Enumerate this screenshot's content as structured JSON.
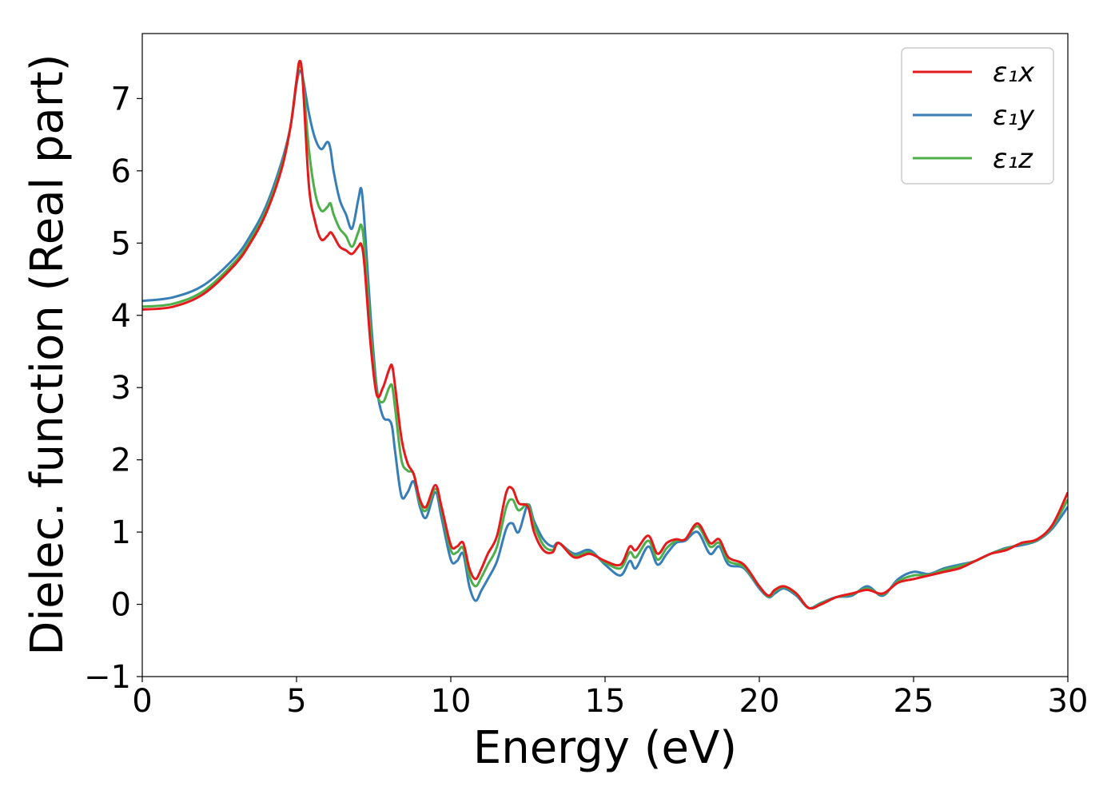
{
  "chart_data": {
    "type": "line",
    "title": "",
    "xlabel": "Energy (eV)",
    "ylabel": "Dielec. function (Real part)",
    "xlim": [
      0,
      30
    ],
    "ylim": [
      -1,
      7.9
    ],
    "xticks": [
      "0",
      "5",
      "10",
      "15",
      "20",
      "25",
      "30"
    ],
    "yticks": [
      "−1",
      "0",
      "1",
      "2",
      "3",
      "4",
      "5",
      "6",
      "7"
    ],
    "grid": false,
    "legend_position": "top-right",
    "series": [
      {
        "name": "ε₁x",
        "color": "#e41a1c",
        "x": [
          0,
          1,
          2,
          3,
          3.5,
          4,
          4.5,
          4.8,
          5.0,
          5.1,
          5.2,
          5.4,
          5.6,
          5.8,
          6.0,
          6.1,
          6.2,
          6.4,
          6.6,
          6.8,
          7.0,
          7.1,
          7.2,
          7.4,
          7.6,
          7.8,
          8.0,
          8.1,
          8.2,
          8.4,
          8.6,
          8.8,
          9.0,
          9.2,
          9.5,
          9.7,
          10.0,
          10.2,
          10.4,
          10.6,
          10.8,
          11.0,
          11.2,
          11.5,
          11.8,
          12.0,
          12.2,
          12.5,
          12.7,
          13.0,
          13.3,
          13.5,
          14.0,
          14.5,
          15.0,
          15.5,
          15.8,
          16.0,
          16.4,
          16.7,
          17.0,
          17.3,
          17.6,
          18.0,
          18.4,
          18.7,
          19.0,
          19.5,
          20.0,
          20.3,
          20.5,
          20.8,
          21.2,
          21.6,
          22.0,
          22.5,
          23.0,
          23.5,
          24.0,
          24.5,
          25.0,
          25.5,
          26.0,
          26.5,
          27.0,
          27.5,
          28.0,
          28.5,
          29.0,
          29.5,
          30.0
        ],
        "values": [
          4.08,
          4.12,
          4.3,
          4.7,
          5.0,
          5.4,
          6.0,
          6.6,
          7.25,
          7.52,
          7.25,
          5.8,
          5.3,
          5.05,
          5.1,
          5.15,
          5.1,
          4.95,
          4.9,
          4.85,
          4.95,
          4.98,
          4.7,
          3.6,
          2.9,
          3.0,
          3.25,
          3.3,
          3.0,
          2.3,
          1.95,
          1.8,
          1.45,
          1.35,
          1.65,
          1.35,
          0.82,
          0.8,
          0.85,
          0.5,
          0.35,
          0.5,
          0.7,
          0.95,
          1.55,
          1.6,
          1.4,
          1.35,
          1.0,
          0.75,
          0.72,
          0.85,
          0.65,
          0.7,
          0.6,
          0.55,
          0.8,
          0.75,
          0.95,
          0.7,
          0.85,
          0.9,
          0.9,
          1.12,
          0.85,
          0.9,
          0.65,
          0.55,
          0.25,
          0.12,
          0.2,
          0.25,
          0.15,
          -0.05,
          0.0,
          0.1,
          0.15,
          0.2,
          0.15,
          0.3,
          0.35,
          0.4,
          0.45,
          0.5,
          0.6,
          0.7,
          0.75,
          0.85,
          0.9,
          1.1,
          1.55
        ]
      },
      {
        "name": "ε₁y",
        "color": "#377eb8",
        "x": [
          0,
          1,
          2,
          3,
          3.5,
          4,
          4.5,
          4.8,
          5.0,
          5.1,
          5.2,
          5.4,
          5.6,
          5.8,
          6.0,
          6.1,
          6.2,
          6.4,
          6.6,
          6.8,
          7.0,
          7.1,
          7.2,
          7.4,
          7.6,
          7.8,
          8.0,
          8.1,
          8.2,
          8.4,
          8.6,
          8.8,
          9.0,
          9.2,
          9.5,
          9.7,
          10.0,
          10.2,
          10.4,
          10.6,
          10.8,
          11.0,
          11.2,
          11.5,
          11.8,
          12.0,
          12.2,
          12.5,
          12.7,
          13.0,
          13.3,
          13.5,
          14.0,
          14.5,
          15.0,
          15.5,
          15.8,
          16.0,
          16.4,
          16.7,
          17.0,
          17.3,
          17.6,
          18.0,
          18.4,
          18.7,
          19.0,
          19.5,
          20.0,
          20.3,
          20.5,
          20.8,
          21.2,
          21.6,
          22.0,
          22.5,
          23.0,
          23.5,
          24.0,
          24.5,
          25.0,
          25.5,
          26.0,
          26.5,
          27.0,
          27.5,
          28.0,
          28.5,
          29.0,
          29.5,
          30.0
        ],
        "values": [
          4.2,
          4.25,
          4.42,
          4.8,
          5.1,
          5.5,
          6.1,
          6.6,
          7.2,
          7.38,
          7.3,
          6.8,
          6.45,
          6.3,
          6.4,
          6.3,
          6.0,
          5.6,
          5.4,
          5.2,
          5.6,
          5.75,
          5.3,
          4.0,
          3.0,
          2.6,
          2.55,
          2.45,
          2.1,
          1.5,
          1.55,
          1.7,
          1.35,
          1.2,
          1.55,
          1.2,
          0.62,
          0.6,
          0.7,
          0.25,
          0.05,
          0.2,
          0.35,
          0.6,
          1.05,
          1.12,
          1.0,
          1.38,
          1.15,
          0.9,
          0.8,
          0.85,
          0.7,
          0.75,
          0.55,
          0.4,
          0.6,
          0.5,
          0.8,
          0.55,
          0.7,
          0.85,
          0.88,
          1.0,
          0.7,
          0.8,
          0.55,
          0.5,
          0.22,
          0.1,
          0.15,
          0.22,
          0.12,
          -0.05,
          0.02,
          0.1,
          0.12,
          0.25,
          0.12,
          0.35,
          0.45,
          0.42,
          0.5,
          0.55,
          0.6,
          0.7,
          0.78,
          0.82,
          0.88,
          1.05,
          1.35
        ]
      },
      {
        "name": "ε₁z",
        "color": "#4daf4a",
        "x": [
          0,
          1,
          2,
          3,
          3.5,
          4,
          4.5,
          4.8,
          5.0,
          5.1,
          5.2,
          5.4,
          5.6,
          5.8,
          6.0,
          6.1,
          6.2,
          6.4,
          6.6,
          6.8,
          7.0,
          7.1,
          7.2,
          7.4,
          7.6,
          7.8,
          8.0,
          8.1,
          8.2,
          8.4,
          8.6,
          8.8,
          9.0,
          9.2,
          9.5,
          9.7,
          10.0,
          10.2,
          10.4,
          10.6,
          10.8,
          11.0,
          11.2,
          11.5,
          11.8,
          12.0,
          12.2,
          12.5,
          12.7,
          13.0,
          13.3,
          13.5,
          14.0,
          14.5,
          15.0,
          15.5,
          15.8,
          16.0,
          16.4,
          16.7,
          17.0,
          17.3,
          17.6,
          18.0,
          18.4,
          18.7,
          19.0,
          19.5,
          20.0,
          20.3,
          20.5,
          20.8,
          21.2,
          21.6,
          22.0,
          22.5,
          23.0,
          23.5,
          24.0,
          24.5,
          25.0,
          25.5,
          26.0,
          26.5,
          27.0,
          27.5,
          28.0,
          28.5,
          29.0,
          29.5,
          30.0
        ],
        "values": [
          4.12,
          4.16,
          4.34,
          4.74,
          5.04,
          5.44,
          6.04,
          6.6,
          7.25,
          7.45,
          7.3,
          6.3,
          5.7,
          5.45,
          5.5,
          5.55,
          5.4,
          5.2,
          5.1,
          4.95,
          5.15,
          5.25,
          4.95,
          3.8,
          2.95,
          2.8,
          3.0,
          3.02,
          2.7,
          2.0,
          1.85,
          1.8,
          1.4,
          1.3,
          1.6,
          1.3,
          0.75,
          0.72,
          0.78,
          0.4,
          0.25,
          0.38,
          0.55,
          0.8,
          1.35,
          1.45,
          1.3,
          1.38,
          1.1,
          0.82,
          0.75,
          0.85,
          0.67,
          0.72,
          0.58,
          0.5,
          0.72,
          0.65,
          0.88,
          0.62,
          0.78,
          0.88,
          0.9,
          1.08,
          0.8,
          0.85,
          0.6,
          0.52,
          0.24,
          0.11,
          0.18,
          0.24,
          0.14,
          -0.05,
          0.01,
          0.1,
          0.14,
          0.22,
          0.14,
          0.32,
          0.4,
          0.41,
          0.48,
          0.53,
          0.6,
          0.7,
          0.77,
          0.84,
          0.89,
          1.08,
          1.45
        ]
      }
    ]
  }
}
